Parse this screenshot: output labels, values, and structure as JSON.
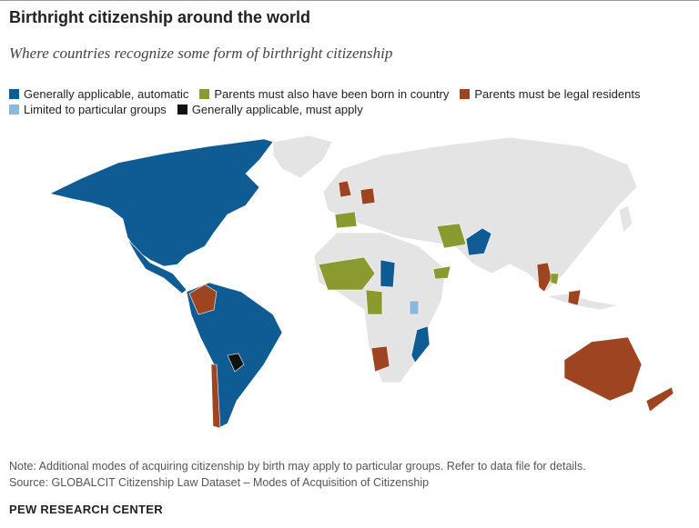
{
  "header": {
    "title": "Birthright citizenship around the world",
    "subtitle": "Where countries recognize some form of birthright citizenship"
  },
  "legend": {
    "items": [
      {
        "label": "Generally applicable, automatic",
        "color": "#0f5b93"
      },
      {
        "label": "Parents must also have been born in country",
        "color": "#8a9a2f"
      },
      {
        "label": "Parents must be legal residents",
        "color": "#9e4421"
      },
      {
        "label": "Limited to particular groups",
        "color": "#8db8dd"
      },
      {
        "label": "Generally applicable, must apply",
        "color": "#111111"
      }
    ]
  },
  "footer": {
    "note": "Note: Additional modes of acquiring citizenship by birth may apply to particular groups. Refer to data file for details.",
    "source": "Source: GLOBALCIT Citizenship Law Dataset – Modes of Acquisition of Citizenship",
    "brand": "PEW RESEARCH CENTER"
  }
}
